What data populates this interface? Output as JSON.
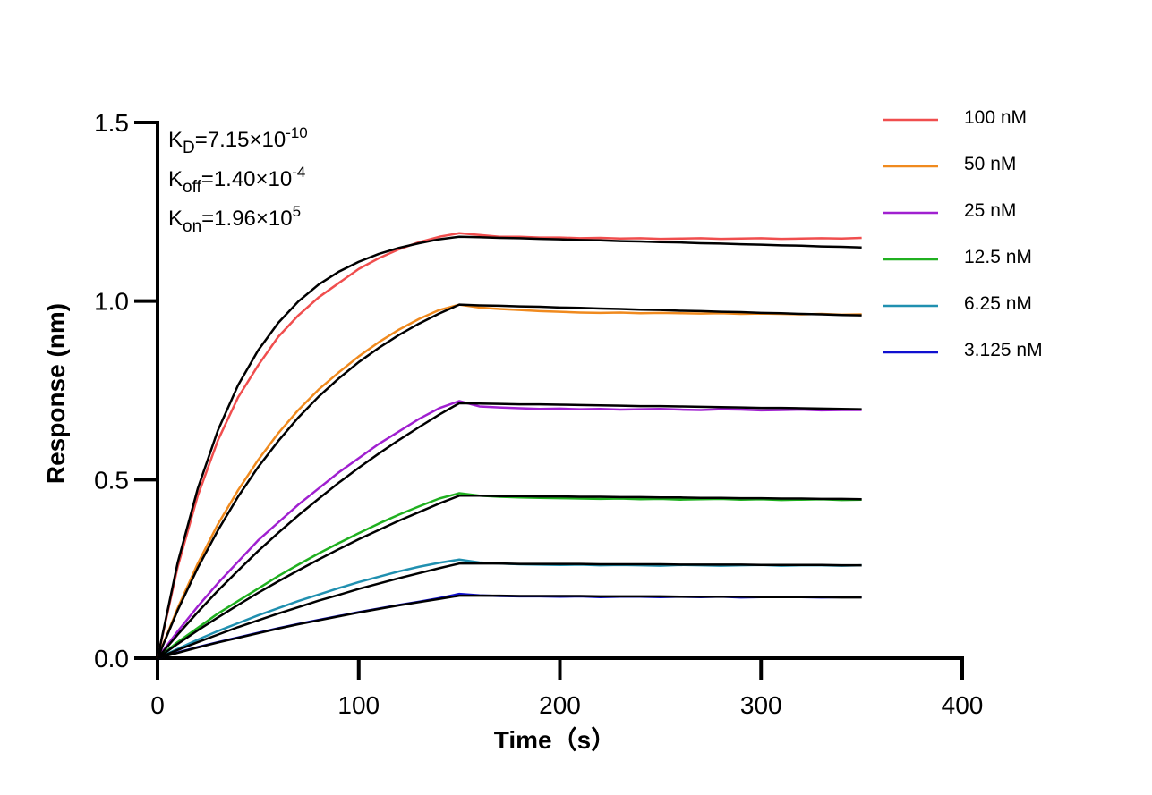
{
  "chart_data": {
    "type": "line",
    "xlabel": "Time（s）",
    "ylabel": "Response (nm)",
    "annotations": [
      {
        "text": "K",
        "sub": "D",
        "rest": "=7.15×10",
        "sup": "-10"
      },
      {
        "text": "K",
        "sub": "off",
        "rest": "=1.40×10",
        "sup": "-4"
      },
      {
        "text": "K",
        "sub": "on",
        "rest": "=1.96×10",
        "sup": "5"
      }
    ],
    "x": [
      0,
      10,
      20,
      30,
      40,
      50,
      60,
      70,
      80,
      90,
      100,
      110,
      120,
      130,
      140,
      150,
      160,
      170,
      180,
      190,
      200,
      210,
      220,
      230,
      240,
      250,
      260,
      270,
      280,
      290,
      300,
      310,
      320,
      330,
      340,
      350
    ],
    "xlim": [
      0,
      400
    ],
    "xticks": [
      0,
      100,
      200,
      300,
      400
    ],
    "ylim": [
      0,
      1.5
    ],
    "yticks": [
      {
        "value": 0,
        "label": "0.0"
      },
      {
        "value": 0.5,
        "label": "0.5"
      },
      {
        "value": 1,
        "label": "1.0"
      },
      {
        "value": 1.5,
        "label": "1.5"
      }
    ],
    "series": [
      {
        "name": "100 nM",
        "color": "#f04e4e",
        "values": [
          0,
          0.255,
          0.455,
          0.61,
          0.73,
          0.82,
          0.9,
          0.96,
          1.01,
          1.05,
          1.09,
          1.12,
          1.145,
          1.165,
          1.18,
          1.19,
          1.185,
          1.18,
          1.18,
          1.178,
          1.178,
          1.176,
          1.177,
          1.175,
          1.176,
          1.174,
          1.175,
          1.176,
          1.174,
          1.175,
          1.176,
          1.174,
          1.175,
          1.176,
          1.175,
          1.177
        ]
      },
      {
        "name": "50 nM",
        "color": "#f08a1e",
        "values": [
          0,
          0.14,
          0.265,
          0.375,
          0.47,
          0.555,
          0.63,
          0.695,
          0.752,
          0.8,
          0.845,
          0.885,
          0.92,
          0.95,
          0.975,
          0.99,
          0.982,
          0.978,
          0.975,
          0.972,
          0.97,
          0.968,
          0.967,
          0.968,
          0.966,
          0.967,
          0.966,
          0.965,
          0.966,
          0.964,
          0.965,
          0.964,
          0.963,
          0.964,
          0.962,
          0.963
        ]
      },
      {
        "name": "25 nM",
        "color": "#a020d0",
        "values": [
          0,
          0.075,
          0.145,
          0.21,
          0.27,
          0.33,
          0.38,
          0.43,
          0.475,
          0.52,
          0.56,
          0.6,
          0.635,
          0.67,
          0.7,
          0.72,
          0.705,
          0.702,
          0.7,
          0.698,
          0.699,
          0.697,
          0.698,
          0.696,
          0.697,
          0.698,
          0.696,
          0.695,
          0.697,
          0.696,
          0.694,
          0.695,
          0.696,
          0.694,
          0.695,
          0.695
        ]
      },
      {
        "name": "12.5 nM",
        "color": "#20b020",
        "values": [
          0,
          0.045,
          0.085,
          0.125,
          0.16,
          0.195,
          0.23,
          0.262,
          0.293,
          0.322,
          0.35,
          0.377,
          0.402,
          0.425,
          0.447,
          0.462,
          0.455,
          0.452,
          0.45,
          0.449,
          0.448,
          0.447,
          0.446,
          0.447,
          0.445,
          0.446,
          0.444,
          0.445,
          0.446,
          0.444,
          0.445,
          0.443,
          0.444,
          0.445,
          0.443,
          0.444
        ]
      },
      {
        "name": "6.25 nM",
        "color": "#2090b0",
        "values": [
          0,
          0.026,
          0.052,
          0.076,
          0.098,
          0.12,
          0.14,
          0.16,
          0.178,
          0.196,
          0.213,
          0.228,
          0.243,
          0.256,
          0.267,
          0.276,
          0.268,
          0.265,
          0.263,
          0.262,
          0.261,
          0.262,
          0.26,
          0.261,
          0.26,
          0.259,
          0.261,
          0.26,
          0.259,
          0.26,
          0.261,
          0.259,
          0.26,
          0.26,
          0.259,
          0.26
        ]
      },
      {
        "name": "3.125 nM",
        "color": "#1010d0",
        "values": [
          0,
          0.016,
          0.031,
          0.045,
          0.058,
          0.071,
          0.084,
          0.096,
          0.107,
          0.118,
          0.129,
          0.139,
          0.149,
          0.158,
          0.168,
          0.18,
          0.176,
          0.174,
          0.173,
          0.173,
          0.172,
          0.173,
          0.171,
          0.172,
          0.172,
          0.171,
          0.172,
          0.171,
          0.172,
          0.17,
          0.171,
          0.172,
          0.171,
          0.17,
          0.171,
          0.171
        ]
      }
    ],
    "fit_color": "#000000",
    "fits": [
      {
        "values": [
          0,
          0.267,
          0.475,
          0.638,
          0.764,
          0.862,
          0.939,
          0.999,
          1.046,
          1.082,
          1.11,
          1.132,
          1.149,
          1.162,
          1.173,
          1.18,
          1.179,
          1.177,
          1.176,
          1.174,
          1.173,
          1.171,
          1.17,
          1.168,
          1.167,
          1.165,
          1.164,
          1.162,
          1.161,
          1.159,
          1.158,
          1.156,
          1.155,
          1.153,
          1.152,
          1.15
        ]
      },
      {
        "values": [
          0,
          0.134,
          0.253,
          0.358,
          0.452,
          0.535,
          0.608,
          0.674,
          0.732,
          0.783,
          0.829,
          0.869,
          0.905,
          0.937,
          0.965,
          0.99,
          0.988,
          0.987,
          0.985,
          0.984,
          0.982,
          0.981,
          0.979,
          0.978,
          0.976,
          0.975,
          0.973,
          0.972,
          0.97,
          0.969,
          0.967,
          0.966,
          0.964,
          0.963,
          0.961,
          0.96
        ]
      },
      {
        "values": [
          0,
          0.066,
          0.129,
          0.189,
          0.245,
          0.3,
          0.351,
          0.4,
          0.446,
          0.491,
          0.533,
          0.573,
          0.611,
          0.647,
          0.682,
          0.714,
          0.713,
          0.712,
          0.711,
          0.711,
          0.71,
          0.709,
          0.708,
          0.707,
          0.706,
          0.706,
          0.705,
          0.704,
          0.703,
          0.702,
          0.701,
          0.701,
          0.7,
          0.699,
          0.698,
          0.697
        ]
      },
      {
        "values": [
          0,
          0.04,
          0.078,
          0.114,
          0.149,
          0.183,
          0.215,
          0.246,
          0.276,
          0.305,
          0.333,
          0.359,
          0.385,
          0.409,
          0.433,
          0.455,
          0.455,
          0.454,
          0.454,
          0.453,
          0.453,
          0.452,
          0.452,
          0.451,
          0.451,
          0.45,
          0.45,
          0.449,
          0.449,
          0.448,
          0.448,
          0.447,
          0.447,
          0.446,
          0.446,
          0.445
        ]
      },
      {
        "values": [
          0,
          0.023,
          0.045,
          0.066,
          0.087,
          0.106,
          0.125,
          0.143,
          0.161,
          0.177,
          0.194,
          0.209,
          0.224,
          0.238,
          0.252,
          0.265,
          0.265,
          0.265,
          0.264,
          0.264,
          0.264,
          0.264,
          0.263,
          0.263,
          0.263,
          0.263,
          0.262,
          0.262,
          0.262,
          0.262,
          0.261,
          0.261,
          0.261,
          0.261,
          0.26,
          0.26
        ]
      },
      {
        "values": [
          0,
          0.015,
          0.03,
          0.044,
          0.057,
          0.07,
          0.083,
          0.095,
          0.106,
          0.117,
          0.128,
          0.138,
          0.148,
          0.157,
          0.166,
          0.175,
          0.175,
          0.175,
          0.174,
          0.174,
          0.174,
          0.174,
          0.173,
          0.173,
          0.173,
          0.173,
          0.172,
          0.172,
          0.172,
          0.172,
          0.171,
          0.171,
          0.171,
          0.171,
          0.17,
          0.17
        ]
      }
    ]
  }
}
